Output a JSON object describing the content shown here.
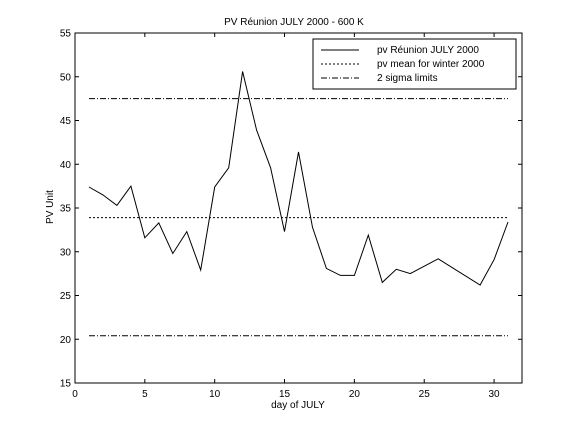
{
  "chart_data": {
    "type": "line",
    "title": "PV Réunion JULY 2000 - 600 K",
    "xlabel": "day of JULY",
    "ylabel": "PV Unit",
    "xlim": [
      0,
      32
    ],
    "ylim": [
      15,
      55
    ],
    "xticks": [
      0,
      5,
      10,
      15,
      20,
      25,
      30
    ],
    "yticks": [
      15,
      20,
      25,
      30,
      35,
      40,
      45,
      50,
      55
    ],
    "grid": false,
    "legend_position": "top-right",
    "series": [
      {
        "name": "pv Réunion JULY 2000",
        "style": "solid",
        "x": [
          1,
          2,
          3,
          4,
          5,
          6,
          7,
          8,
          9,
          10,
          11,
          12,
          13,
          14,
          15,
          16,
          17,
          18,
          19,
          20,
          21,
          22,
          23,
          24,
          26,
          29,
          30,
          31
        ],
        "y": [
          37.4,
          36.5,
          35.3,
          37.5,
          31.6,
          33.3,
          29.8,
          32.3,
          27.9,
          37.4,
          39.6,
          50.6,
          43.9,
          39.6,
          32.3,
          41.4,
          32.8,
          28.1,
          27.3,
          27.3,
          31.9,
          26.5,
          28.0,
          27.5,
          29.2,
          26.2,
          29.1,
          33.4
        ]
      },
      {
        "name": "pv mean for winter 2000",
        "style": "dashed",
        "x": [
          1,
          31
        ],
        "y": [
          33.9,
          33.9
        ]
      },
      {
        "name": "2 sigma limits",
        "style": "dashdot",
        "x": [
          1,
          31
        ],
        "y": [
          47.5,
          47.5
        ]
      },
      {
        "name": "",
        "style": "dashdot",
        "x": [
          1,
          31
        ],
        "y": [
          20.4,
          20.4
        ]
      }
    ]
  }
}
